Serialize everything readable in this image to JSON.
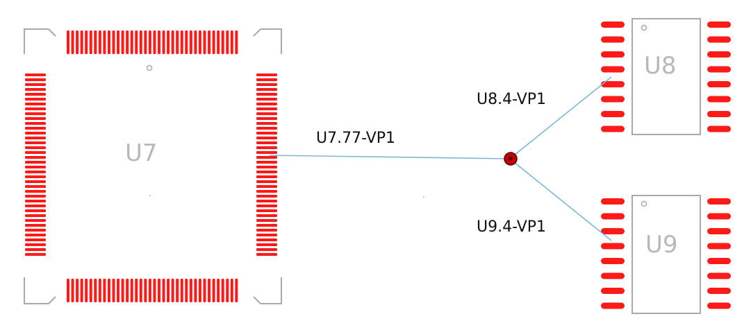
{
  "components": {
    "u7": {
      "designator": "U7"
    },
    "u8": {
      "designator": "U8"
    },
    "u9": {
      "designator": "U9"
    }
  },
  "nets": {
    "trunk_label": "U7.77-VP1",
    "branch_top_label": "U8.4-VP1",
    "branch_bottom_label": "U9.4-VP1"
  },
  "colors": {
    "pad": "#ff1a1a",
    "outline": "#a9a9a9",
    "trace": "#7fb6d6",
    "via_fill": "#c40000",
    "via_ring": "#4a0000",
    "text": "#111111"
  }
}
